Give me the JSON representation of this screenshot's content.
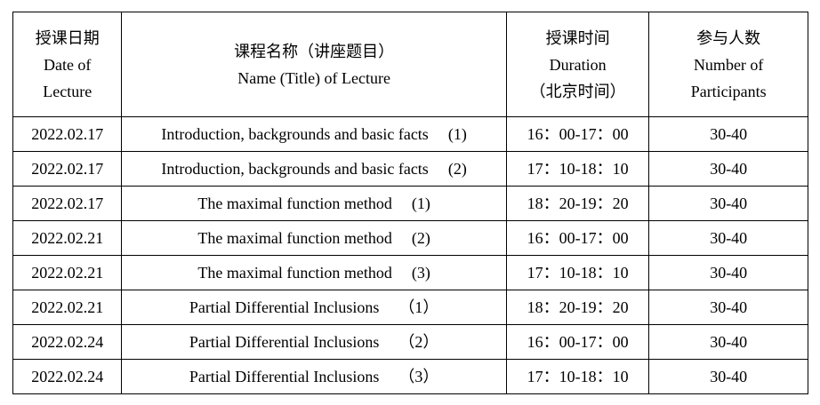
{
  "headers": [
    {
      "zh": "授课日期",
      "en1": "Date of",
      "en2": "Lecture"
    },
    {
      "zh": "课程名称（讲座题目）",
      "en1": "Name (Title) of Lecture"
    },
    {
      "zh": "授课时间",
      "en1": "Duration",
      "en2": "（北京时间）"
    },
    {
      "zh": "参与人数",
      "en1": "Number of",
      "en2": "Participants"
    }
  ],
  "rows": [
    {
      "date": "2022.02.17",
      "title": "Introduction, backgrounds and basic facts",
      "part": "(1)",
      "duration": "16：00-17：00",
      "participants": "30-40"
    },
    {
      "date": "2022.02.17",
      "title": "Introduction, backgrounds and basic facts",
      "part": "(2)",
      "duration": "17：10-18：10",
      "participants": "30-40"
    },
    {
      "date": "2022.02.17",
      "title": "The maximal function method",
      "part": "(1)",
      "duration": "18：20-19：20",
      "participants": "30-40"
    },
    {
      "date": "2022.02.21",
      "title": "The maximal function method",
      "part": "(2)",
      "duration": "16：00-17：00",
      "participants": "30-40"
    },
    {
      "date": "2022.02.21",
      "title": "The maximal function method",
      "part": "(3)",
      "duration": "17：10-18：10",
      "participants": "30-40"
    },
    {
      "date": "2022.02.21",
      "title": "Partial Differential Inclusions",
      "part": "（1）",
      "duration": "18：20-19：20",
      "participants": "30-40"
    },
    {
      "date": "2022.02.24",
      "title": "Partial Differential Inclusions",
      "part": "（2）",
      "duration": "16：00-17：00",
      "participants": "30-40"
    },
    {
      "date": "2022.02.24",
      "title": "Partial Differential Inclusions",
      "part": "（3）",
      "duration": "17：10-18：10",
      "participants": "30-40"
    }
  ]
}
